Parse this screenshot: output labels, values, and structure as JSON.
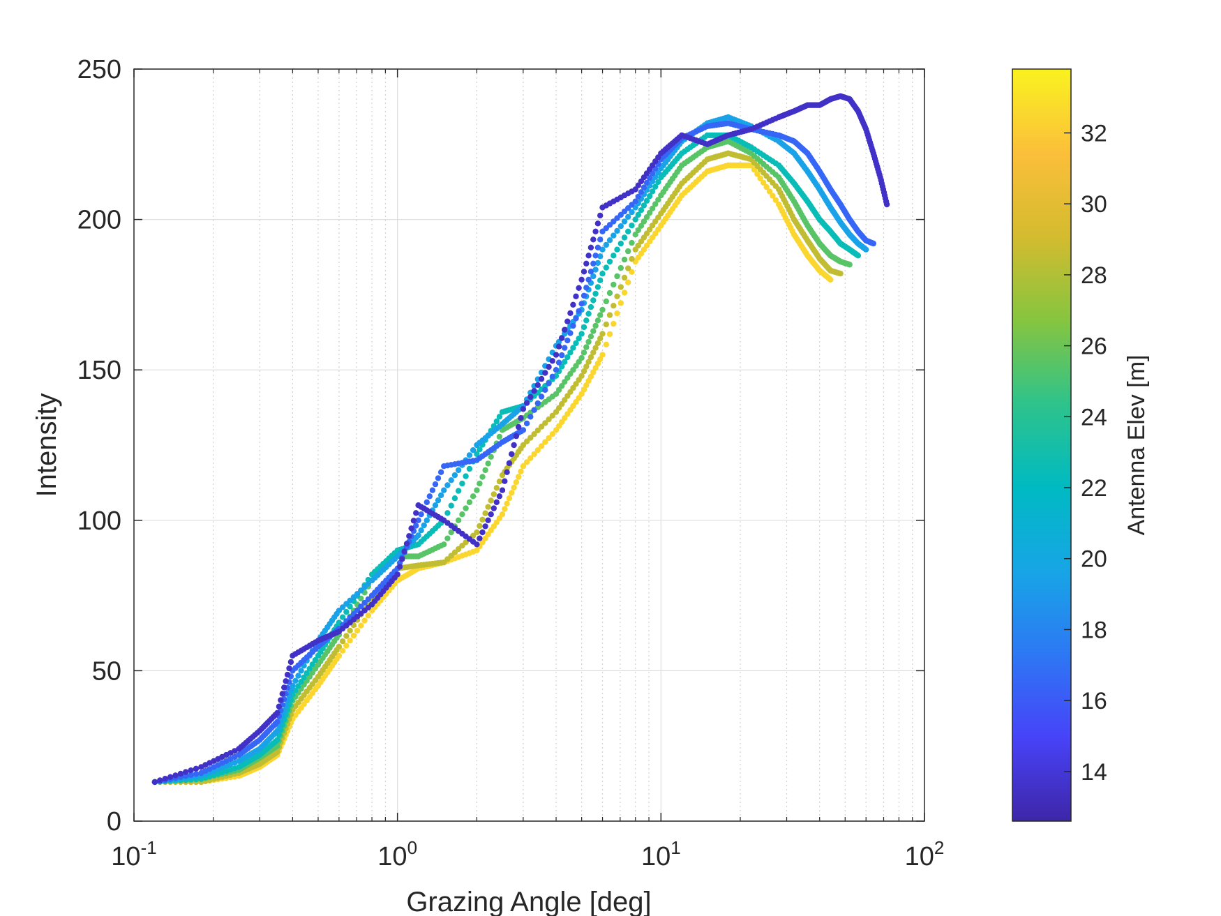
{
  "chart_data": {
    "type": "scatter",
    "xlabel": "Grazing Angle [deg]",
    "ylabel": "Intensity",
    "x_scale": "log",
    "xlim": [
      0.1,
      100
    ],
    "ylim": [
      0,
      250
    ],
    "x_ticks": [
      {
        "value": 0.1,
        "base": "10",
        "exp": "-1"
      },
      {
        "value": 1,
        "base": "10",
        "exp": "0"
      },
      {
        "value": 10,
        "base": "10",
        "exp": "1"
      },
      {
        "value": 100,
        "base": "10",
        "exp": "2"
      }
    ],
    "y_ticks": [
      "0",
      "50",
      "100",
      "150",
      "200",
      "250"
    ],
    "grid": true,
    "colorbar": {
      "label": "Antenna Elev [m]",
      "range": [
        12.6,
        33.8
      ],
      "ticks": [
        "14",
        "16",
        "18",
        "20",
        "22",
        "24",
        "26",
        "28",
        "30",
        "32"
      ],
      "colormap": [
        "#3e26a8",
        "#4743f8",
        "#2d78f4",
        "#17a5e6",
        "#00bac2",
        "#2ec38b",
        "#86c53f",
        "#d4bb2f",
        "#fbbf3a",
        "#faf21f"
      ]
    },
    "series": [
      {
        "elev": 13.5,
        "x": [
          0.12,
          0.18,
          0.25,
          0.3,
          0.35,
          0.4,
          0.5,
          0.6,
          0.8,
          1.0,
          1.2,
          1.5,
          2.0,
          2.5,
          3.0,
          4.0,
          5.0,
          6.0,
          8.0,
          10.0,
          12.0,
          15.0,
          18.0,
          22.0,
          28.0,
          32.0,
          36.0,
          40.0,
          44.0,
          48.0,
          52.0,
          56.0,
          60.0,
          64.0,
          68.0,
          72.0
        ],
        "y": [
          13,
          18,
          24,
          30,
          36,
          55,
          60,
          63,
          72,
          82,
          105,
          100,
          92,
          110,
          137,
          155,
          180,
          204,
          210,
          222,
          228,
          225,
          228,
          230,
          234,
          236,
          238,
          238,
          240,
          241,
          240,
          236,
          230,
          222,
          214,
          205
        ]
      },
      {
        "elev": 16.5,
        "x": [
          0.12,
          0.18,
          0.25,
          0.3,
          0.35,
          0.4,
          0.5,
          0.6,
          0.8,
          1.0,
          1.2,
          1.5,
          2.0,
          2.5,
          3.0,
          4.0,
          5.0,
          6.0,
          8.0,
          10.0,
          12.0,
          15.0,
          18.0,
          22.0,
          28.0,
          32.0,
          36.0,
          40.0,
          44.0,
          48.0,
          52.0,
          56.0,
          60.0,
          64.0
        ],
        "y": [
          13,
          16,
          22,
          27,
          33,
          50,
          58,
          64,
          75,
          84,
          100,
          118,
          120,
          126,
          130,
          150,
          172,
          196,
          206,
          220,
          227,
          231,
          232,
          230,
          228,
          226,
          222,
          216,
          210,
          205,
          200,
          196,
          193,
          192
        ]
      },
      {
        "elev": 19.5,
        "x": [
          0.12,
          0.18,
          0.25,
          0.3,
          0.35,
          0.4,
          0.5,
          0.6,
          0.8,
          1.0,
          1.2,
          1.5,
          2.0,
          2.5,
          3.0,
          4.0,
          5.0,
          6.0,
          8.0,
          10.0,
          12.0,
          15.0,
          18.0,
          22.0,
          28.0,
          32.0,
          36.0,
          40.0,
          44.0,
          48.0,
          52.0,
          56.0,
          60.0
        ],
        "y": [
          13,
          15,
          20,
          24,
          30,
          45,
          60,
          70,
          80,
          88,
          95,
          110,
          125,
          132,
          138,
          158,
          170,
          190,
          204,
          217,
          226,
          232,
          234,
          231,
          226,
          222,
          216,
          210,
          204,
          199,
          195,
          192,
          190
        ]
      },
      {
        "elev": 22.5,
        "x": [
          0.12,
          0.18,
          0.25,
          0.3,
          0.35,
          0.4,
          0.5,
          0.6,
          0.8,
          1.0,
          1.2,
          1.5,
          2.0,
          2.5,
          3.0,
          4.0,
          5.0,
          6.0,
          8.0,
          10.0,
          12.0,
          15.0,
          18.0,
          22.0,
          28.0,
          32.0,
          36.0,
          40.0,
          44.0,
          48.0,
          52.0,
          56.0
        ],
        "y": [
          13,
          14,
          18,
          22,
          27,
          42,
          55,
          66,
          82,
          90,
          92,
          100,
          122,
          136,
          138,
          148,
          162,
          182,
          200,
          214,
          222,
          228,
          228,
          224,
          218,
          212,
          206,
          200,
          196,
          192,
          190,
          188
        ]
      },
      {
        "elev": 25.5,
        "x": [
          0.12,
          0.18,
          0.25,
          0.3,
          0.35,
          0.4,
          0.5,
          0.6,
          0.8,
          1.0,
          1.2,
          1.5,
          2.0,
          2.5,
          3.0,
          4.0,
          5.0,
          6.0,
          8.0,
          10.0,
          12.0,
          15.0,
          18.0,
          22.0,
          28.0,
          32.0,
          36.0,
          40.0,
          44.0,
          48.0,
          52.0
        ],
        "y": [
          13,
          14,
          17,
          21,
          25,
          40,
          52,
          62,
          80,
          88,
          88,
          92,
          110,
          130,
          134,
          142,
          154,
          170,
          195,
          208,
          218,
          224,
          226,
          222,
          214,
          206,
          198,
          192,
          188,
          186,
          185
        ]
      },
      {
        "elev": 28.5,
        "x": [
          0.12,
          0.18,
          0.25,
          0.3,
          0.35,
          0.4,
          0.5,
          0.6,
          0.8,
          1.0,
          1.2,
          1.5,
          2.0,
          2.5,
          3.0,
          4.0,
          5.0,
          6.0,
          8.0,
          10.0,
          12.0,
          15.0,
          18.0,
          22.0,
          28.0,
          32.0,
          36.0,
          40.0,
          44.0,
          48.0
        ],
        "y": [
          13,
          13,
          16,
          19,
          23,
          37,
          48,
          58,
          74,
          84,
          85,
          86,
          96,
          115,
          125,
          136,
          148,
          162,
          190,
          202,
          212,
          220,
          222,
          220,
          210,
          200,
          193,
          187,
          183,
          182
        ]
      },
      {
        "elev": 32.5,
        "x": [
          0.12,
          0.18,
          0.25,
          0.3,
          0.35,
          0.4,
          0.5,
          0.6,
          0.8,
          1.0,
          1.2,
          1.5,
          2.0,
          2.5,
          3.0,
          4.0,
          5.0,
          6.0,
          8.0,
          10.0,
          12.0,
          15.0,
          18.0,
          22.0,
          28.0,
          32.0,
          36.0,
          40.0,
          44.0
        ],
        "y": [
          13,
          13,
          15,
          18,
          22,
          34,
          45,
          55,
          70,
          80,
          84,
          86,
          90,
          102,
          118,
          130,
          142,
          155,
          186,
          198,
          208,
          216,
          218,
          218,
          205,
          195,
          188,
          183,
          180
        ]
      }
    ]
  }
}
